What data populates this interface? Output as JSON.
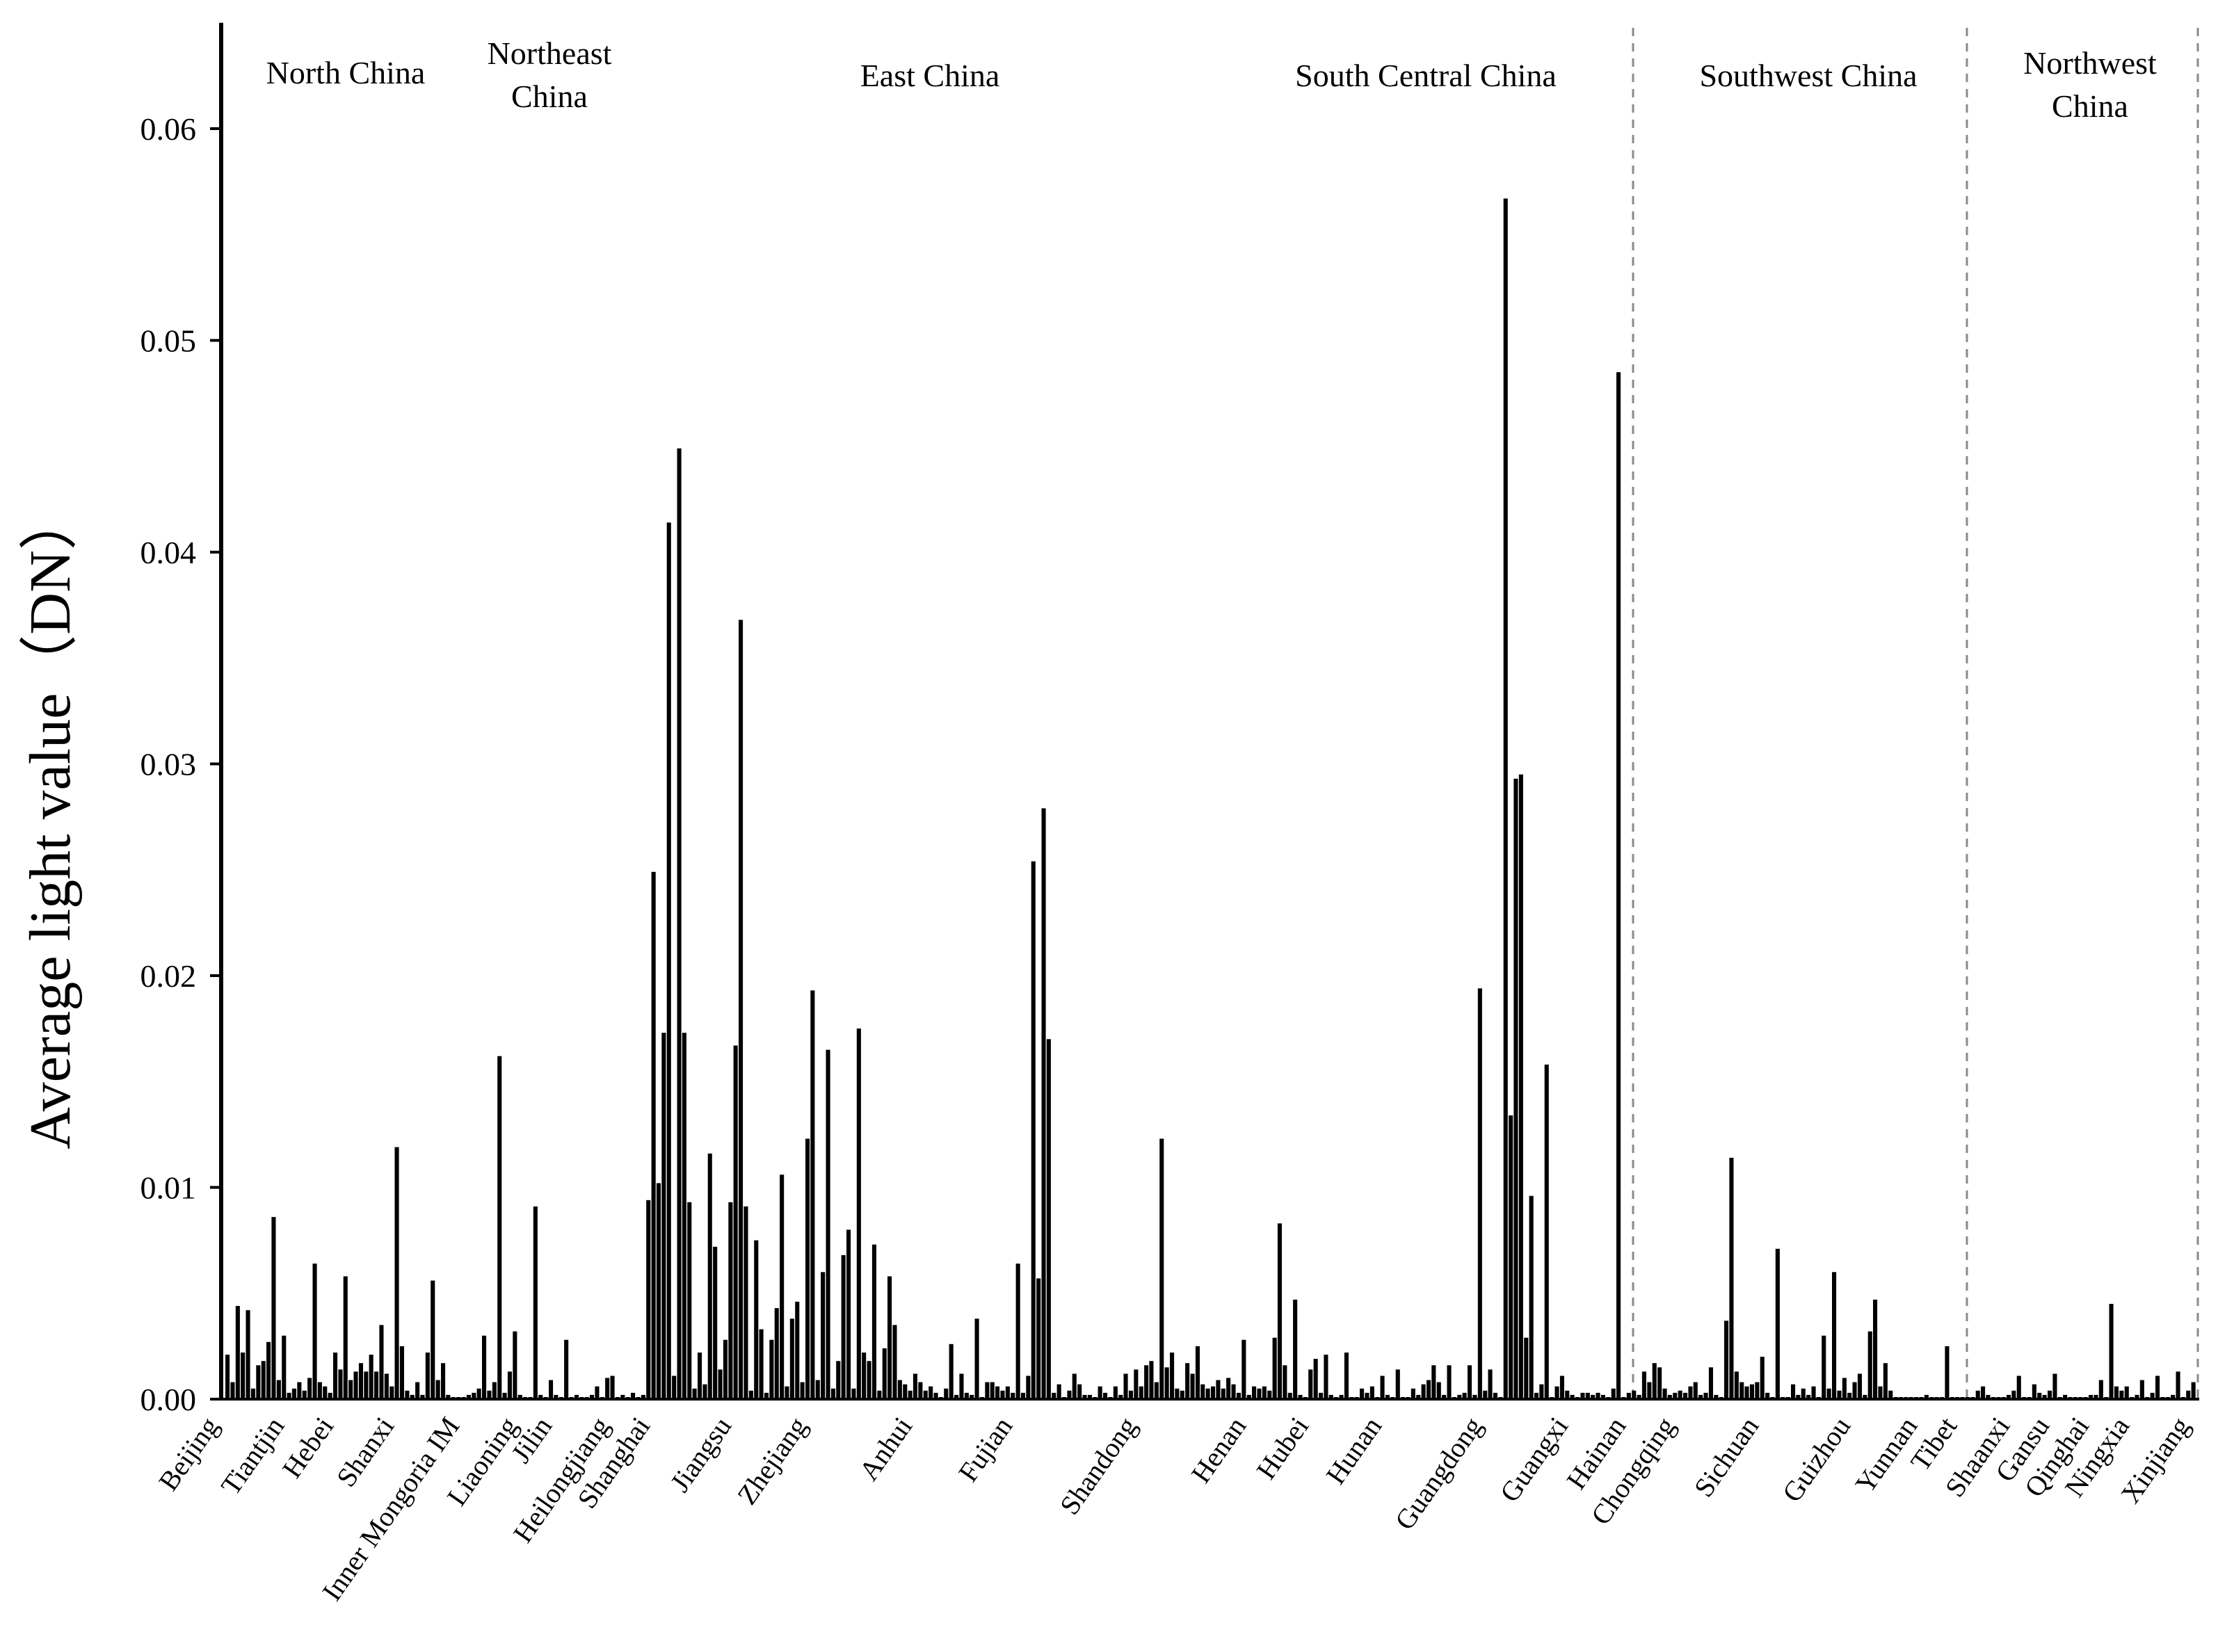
{
  "chart_data": {
    "type": "bar",
    "title": "",
    "xlabel": "",
    "ylabel": "Average light value（DN）",
    "ylim": [
      0,
      0.065
    ],
    "yticks": [
      "0.00",
      "0.01",
      "0.02",
      "0.03",
      "0.04",
      "0.05",
      "0.06"
    ],
    "grid": false,
    "regions": [
      {
        "name": "North China",
        "lines": [
          "North China"
        ]
      },
      {
        "name": "Northeast China",
        "lines": [
          "Northeast",
          "China"
        ]
      },
      {
        "name": "East China",
        "lines": [
          "East China"
        ]
      },
      {
        "name": "South Central China",
        "lines": [
          "South Central China"
        ]
      },
      {
        "name": "Southwest China",
        "lines": [
          "Southwest China"
        ]
      },
      {
        "name": "Northwest China",
        "lines": [
          "Northwest",
          "China"
        ]
      }
    ],
    "provinces": [
      "Beijing",
      "Tiantjin",
      "Hebei",
      "Shanxi",
      "Inner Mongoria IM",
      "Liaoning",
      "Jilin",
      "Heilongjiang",
      "Shanghai",
      "Jiangsu",
      "Zhejiang",
      "Anhui",
      "Fujian",
      "Shandong",
      "Henan",
      "Hubei",
      "Hunan",
      "Guangdong",
      "Guangxi",
      "Hainan",
      "Chongqing",
      "Sichuan",
      "Guizhou",
      "Yunnan",
      "Tibet",
      "Shaanxi",
      "Gansu",
      "Qinghai",
      "Ningxia",
      "Xinjiang"
    ],
    "series": [
      {
        "name": "Average light value",
        "values": [
          0.0021,
          0.0008,
          0.0044,
          0.0022,
          0.0042,
          0.0005,
          0.0016,
          0.0018,
          0.0027,
          0.0086,
          0.0009,
          0.003,
          0.0003,
          0.0005,
          0.0008,
          0.0004,
          0.001,
          0.0064,
          0.0008,
          0.0006,
          0.0003,
          0.0022,
          0.0014,
          0.0058,
          0.0009,
          0.0013,
          0.0017,
          0.0013,
          0.0021,
          0.0013,
          0.0035,
          0.0012,
          0.0006,
          0.0119,
          0.0025,
          0.0004,
          0.0002,
          0.0008,
          0.0002,
          0.0022,
          0.0056,
          0.0009,
          0.0017,
          0.0002,
          0.0001,
          0.0001,
          0.0001,
          0.0002,
          0.0003,
          0.0005,
          0.003,
          0.0004,
          0.0008,
          0.0162,
          0.0003,
          0.0013,
          0.0032,
          0.0002,
          0.0001,
          0.0001,
          0.0091,
          0.0002,
          0.0001,
          0.0009,
          0.0002,
          0.0001,
          0.0028,
          0.0001,
          0.0002,
          0.0001,
          0.0001,
          0.0002,
          0.0006,
          0.0001,
          0.001,
          0.0011,
          0.0001,
          0.0002,
          0.0001,
          0.0003,
          0.0001,
          0.0002,
          0.0094,
          0.0249,
          0.0102,
          0.0173,
          0.0414,
          0.0011,
          0.0449,
          0.0173,
          0.0093,
          0.0005,
          0.0022,
          0.0007,
          0.0116,
          0.0072,
          0.0014,
          0.0028,
          0.0093,
          0.0167,
          0.0368,
          0.0091,
          0.0004,
          0.0075,
          0.0033,
          0.0003,
          0.0028,
          0.0043,
          0.0106,
          0.0006,
          0.0038,
          0.0046,
          0.0008,
          0.0123,
          0.0193,
          0.0009,
          0.006,
          0.0165,
          0.0005,
          0.0018,
          0.0068,
          0.008,
          0.0005,
          0.0175,
          0.0022,
          0.0018,
          0.0073,
          0.0004,
          0.0024,
          0.0058,
          0.0035,
          0.0009,
          0.0007,
          0.0004,
          0.0012,
          0.0008,
          0.0004,
          0.0006,
          0.0003,
          0.0001,
          0.0005,
          0.0026,
          0.0002,
          0.0012,
          0.0003,
          0.0002,
          0.0038,
          0.0001,
          0.0008,
          0.0008,
          0.0006,
          0.0004,
          0.0006,
          0.0003,
          0.0064,
          0.0003,
          0.0011,
          0.0254,
          0.0057,
          0.0279,
          0.017,
          0.0003,
          0.0007,
          0.0001,
          0.0004,
          0.0012,
          0.0007,
          0.0002,
          0.0002,
          0.0001,
          0.0006,
          0.0003,
          0.0001,
          0.0006,
          0.0002,
          0.0012,
          0.0004,
          0.0014,
          0.0006,
          0.0016,
          0.0018,
          0.0008,
          0.0123,
          0.0015,
          0.0022,
          0.0005,
          0.0004,
          0.0017,
          0.0012,
          0.0025,
          0.0007,
          0.0005,
          0.0006,
          0.0009,
          0.0005,
          0.001,
          0.0007,
          0.0003,
          0.0028,
          0.0002,
          0.0006,
          0.0005,
          0.0006,
          0.0004,
          0.0029,
          0.0083,
          0.0016,
          0.0003,
          0.0047,
          0.0002,
          0.0001,
          0.0014,
          0.0019,
          0.0003,
          0.0021,
          0.0002,
          0.0001,
          0.0002,
          0.0022,
          0.0001,
          0.0001,
          0.0005,
          0.0003,
          0.0006,
          0.0001,
          0.0011,
          0.0002,
          0.0001,
          0.0014,
          0.0001,
          0.0001,
          0.0005,
          0.0002,
          0.0007,
          0.0009,
          0.0016,
          0.0008,
          0.0002,
          0.0016,
          0.0001,
          0.0002,
          0.0003,
          0.0016,
          0.0002,
          0.0194,
          0.0004,
          0.0014,
          0.0003,
          0.0001,
          0.0567,
          0.0134,
          0.0293,
          0.0295,
          0.0029,
          0.0096,
          0.0003,
          0.0007,
          0.0158,
          0.0001,
          0.0006,
          0.0011,
          0.0004,
          0.0002,
          0.0001,
          0.0003,
          0.0003,
          0.0002,
          0.0003,
          0.0002,
          0.0001,
          0.0005,
          0.0485,
          0.0001,
          0.0003,
          0.0004,
          0.0002,
          0.0013,
          0.0008,
          0.0017,
          0.0015,
          0.0005,
          0.0002,
          0.0003,
          0.0004,
          0.0003,
          0.0006,
          0.0008,
          0.0002,
          0.0003,
          0.0015,
          0.0002,
          0.0001,
          0.0037,
          0.0114,
          0.0013,
          0.0008,
          0.0006,
          0.0007,
          0.0008,
          0.002,
          0.0003,
          0.0001,
          0.0071,
          0.0001,
          0.0001,
          0.0007,
          0.0002,
          0.0005,
          0.0002,
          0.0006,
          0.0001,
          0.003,
          0.0005,
          0.006,
          0.0004,
          0.001,
          0.0003,
          0.0008,
          0.0012,
          0.0002,
          0.0032,
          0.0047,
          0.0006,
          0.0017,
          0.0004,
          0.0001,
          0.0001,
          0.0001,
          0.0001,
          0.0001,
          0.0001,
          0.0002,
          0.0001,
          0.0001,
          0.0001,
          0.0025,
          0.0001,
          0.0001,
          0.0001,
          0.0001,
          0.0001,
          0.0004,
          0.0006,
          0.0002,
          0.0001,
          0.0001,
          0.0001,
          0.0002,
          0.0004,
          0.0011,
          0.0001,
          0.0001,
          0.0007,
          0.0003,
          0.0002,
          0.0004,
          0.0012,
          0.0001,
          0.0002,
          0.0001,
          0.0001,
          0.0001,
          0.0001,
          0.0002,
          0.0002,
          0.0009,
          0.0001,
          0.0045,
          0.0006,
          0.0004,
          0.0006,
          0.0001,
          0.0002,
          0.0009,
          0.0001,
          0.0003,
          0.0011,
          0.0001,
          0.0001,
          0.0002,
          0.0013,
          0.0001,
          0.0004,
          0.0008
        ]
      }
    ]
  }
}
